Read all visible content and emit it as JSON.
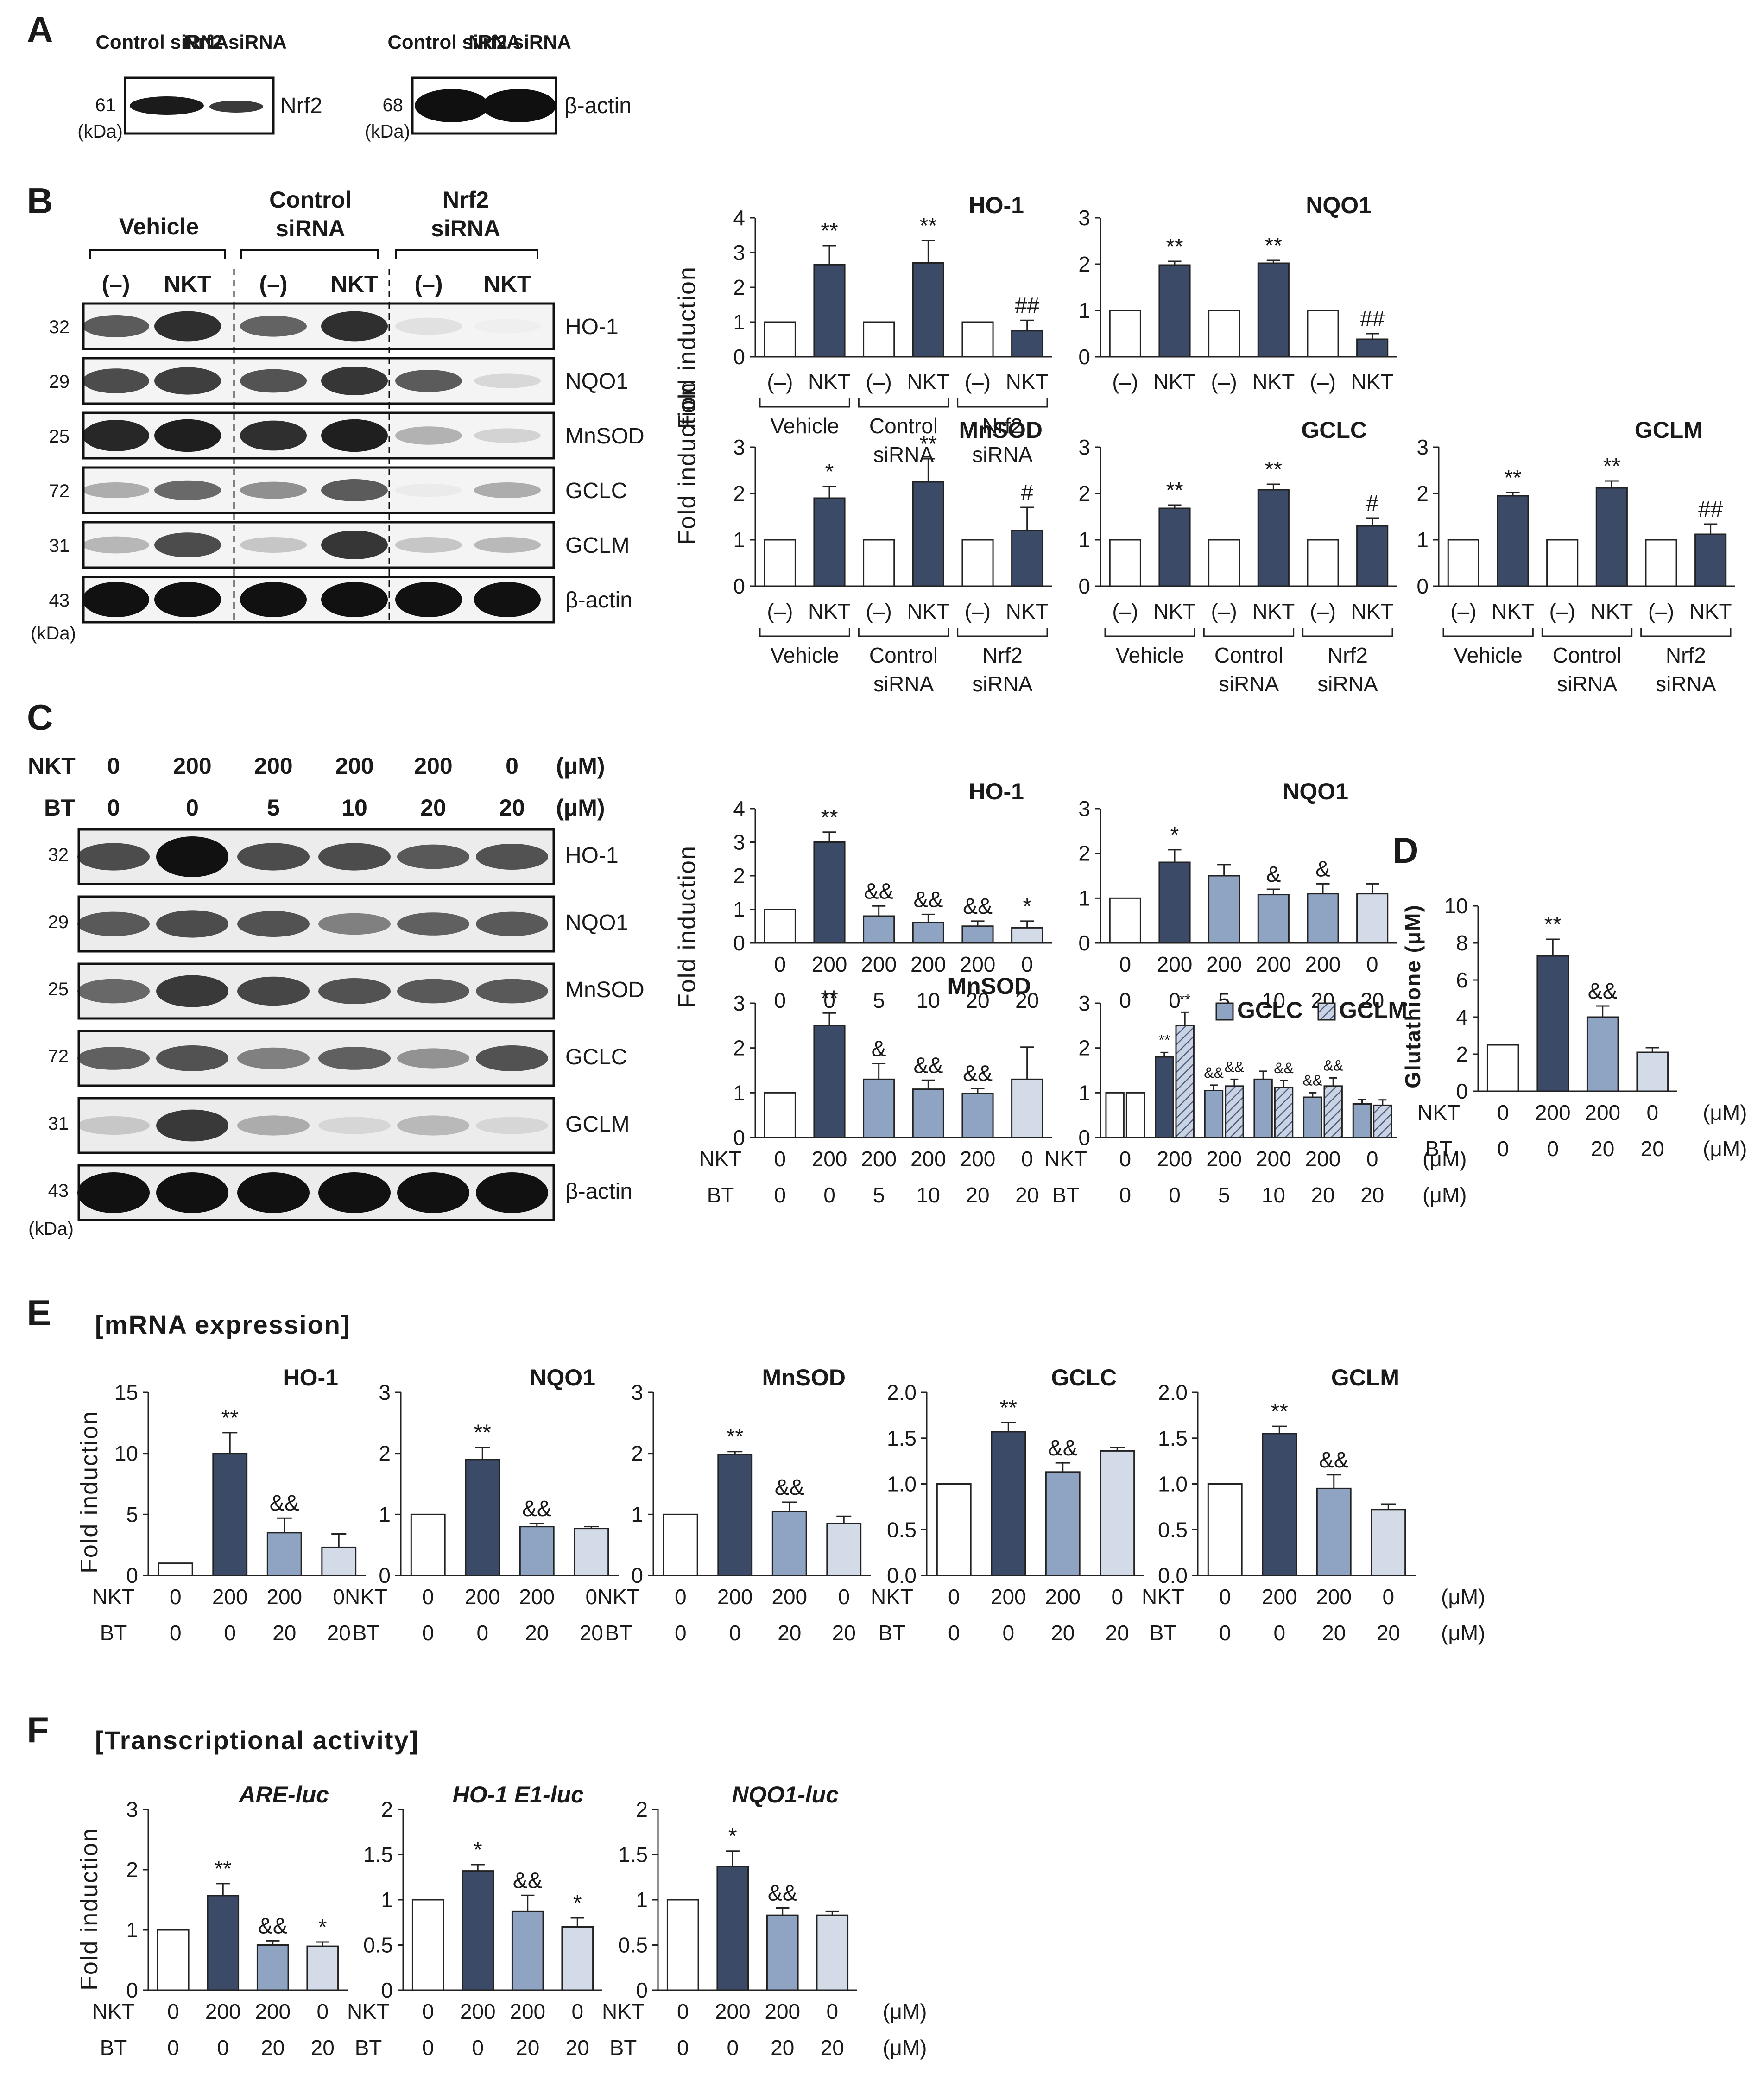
{
  "colors": {
    "white_bar": "#ffffff",
    "dark_bar": "#3b4a66",
    "mid_bar": "#8fa3c2",
    "light_bar": "#d3dbe8",
    "hatch_bar": "#bcc8dc",
    "axis": "#222222"
  },
  "panelA": {
    "letter": "A",
    "blots": [
      {
        "lanes": [
          "Control siRNA",
          "Nrf2 siRNA"
        ],
        "protein": "Nrf2",
        "mw": "61",
        "unit": "(kDa)"
      },
      {
        "lanes": [
          "Control siRNA",
          "Nrf2 siRNA"
        ],
        "protein": "β-actin",
        "mw": "68",
        "unit": "(kDa)"
      }
    ]
  },
  "panelB": {
    "letter": "B",
    "groups": [
      "Vehicle",
      "Control siRNA",
      "Nrf2 siRNA"
    ],
    "lanes": [
      "(–)",
      "NKT",
      "(–)",
      "NKT",
      "(–)",
      "NKT"
    ],
    "rows": [
      {
        "mw": "32",
        "protein": "HO-1"
      },
      {
        "mw": "29",
        "protein": "NQO1"
      },
      {
        "mw": "25",
        "protein": "MnSOD"
      },
      {
        "mw": "72",
        "protein": "GCLC"
      },
      {
        "mw": "31",
        "protein": "GCLM"
      },
      {
        "mw": "43",
        "protein": "β-actin"
      }
    ],
    "unit": "(kDa)"
  },
  "panelC": {
    "letter": "C",
    "nkt_label": "NKT",
    "bt_label": "BT",
    "nkt": [
      "0",
      "200",
      "200",
      "200",
      "200",
      "0"
    ],
    "bt": [
      "0",
      "0",
      "5",
      "10",
      "20",
      "20"
    ],
    "unit": "(μM)",
    "rows": [
      {
        "mw": "32",
        "protein": "HO-1"
      },
      {
        "mw": "29",
        "protein": "NQO1"
      },
      {
        "mw": "25",
        "protein": "MnSOD"
      },
      {
        "mw": "72",
        "protein": "GCLC"
      },
      {
        "mw": "31",
        "protein": "GCLM"
      },
      {
        "mw": "43",
        "protein": "β-actin"
      }
    ],
    "kda": "(kDa)"
  },
  "panelD": {
    "letter": "D"
  },
  "panelE": {
    "letter": "E",
    "section": "[mRNA expression]"
  },
  "panelF": {
    "letter": "F",
    "section": "[Transcriptional activity]"
  },
  "chart_data": [
    {
      "id": "B-HO1",
      "panel": "B",
      "type": "bar",
      "title": "HO-1",
      "ylabel": "Fold induction",
      "ylim": [
        0,
        4
      ],
      "yticks": [
        "0",
        "1",
        "2",
        "3",
        "4"
      ],
      "categories": [
        "(–)",
        "NKT",
        "(–)",
        "NKT",
        "(–)",
        "NKT"
      ],
      "values": [
        1,
        2.65,
        1,
        2.7,
        1,
        0.75
      ],
      "errors": [
        0,
        0.55,
        0,
        0.65,
        0,
        0.3
      ],
      "annotations": [
        "",
        "**",
        "",
        "**",
        "",
        "##"
      ],
      "groups": [
        "Vehicle",
        "Control siRNA",
        "Nrf2 siRNA"
      ]
    },
    {
      "id": "B-NQO1",
      "panel": "B",
      "type": "bar",
      "title": "NQO1",
      "ylim": [
        0,
        3
      ],
      "yticks": [
        "0",
        "1",
        "2",
        "3"
      ],
      "categories": [
        "(–)",
        "NKT",
        "(–)",
        "NKT",
        "(–)",
        "NKT"
      ],
      "values": [
        1,
        1.98,
        1,
        2.02,
        1,
        0.38
      ],
      "errors": [
        0,
        0.08,
        0,
        0.06,
        0,
        0.12
      ],
      "annotations": [
        "",
        "**",
        "",
        "**",
        "",
        "##"
      ]
    },
    {
      "id": "B-MnSOD",
      "panel": "B",
      "type": "bar",
      "title": "MnSOD",
      "ylabel": "Fold induction",
      "ylim": [
        0,
        3
      ],
      "yticks": [
        "0",
        "1",
        "2",
        "3"
      ],
      "categories": [
        "(–)",
        "NKT",
        "(–)",
        "NKT",
        "(–)",
        "NKT"
      ],
      "values": [
        1,
        1.9,
        1,
        2.25,
        1,
        1.2
      ],
      "errors": [
        0,
        0.25,
        0,
        0.5,
        0,
        0.5
      ],
      "annotations": [
        "",
        "*",
        "",
        "**",
        "",
        "#"
      ],
      "groups": [
        "Vehicle",
        "Control siRNA",
        "Nrf2 siRNA"
      ]
    },
    {
      "id": "B-GCLC",
      "panel": "B",
      "type": "bar",
      "title": "GCLC",
      "ylim": [
        0,
        3
      ],
      "yticks": [
        "0",
        "1",
        "2",
        "3"
      ],
      "categories": [
        "(–)",
        "NKT",
        "(–)",
        "NKT",
        "(–)",
        "NKT"
      ],
      "values": [
        1,
        1.68,
        1,
        2.08,
        1,
        1.3
      ],
      "errors": [
        0,
        0.07,
        0,
        0.12,
        0,
        0.17
      ],
      "annotations": [
        "",
        "**",
        "",
        "**",
        "",
        "#"
      ],
      "groups": [
        "Vehicle",
        "Control siRNA",
        "Nrf2 siRNA"
      ]
    },
    {
      "id": "B-GCLM",
      "panel": "B",
      "type": "bar",
      "title": "GCLM",
      "ylim": [
        0,
        3
      ],
      "yticks": [
        "0",
        "1",
        "2",
        "3"
      ],
      "categories": [
        "(–)",
        "NKT",
        "(–)",
        "NKT",
        "(–)",
        "NKT"
      ],
      "values": [
        1,
        1.95,
        1,
        2.12,
        1,
        1.12
      ],
      "errors": [
        0,
        0.07,
        0,
        0.15,
        0,
        0.22
      ],
      "annotations": [
        "",
        "**",
        "",
        "**",
        "",
        "##"
      ],
      "groups": [
        "Vehicle",
        "Control siRNA",
        "Nrf2 siRNA"
      ]
    },
    {
      "id": "C-HO1",
      "panel": "C",
      "type": "bar",
      "title": "HO-1",
      "ylabel": "Fold induction",
      "ylim": [
        0,
        4
      ],
      "yticks": [
        "0",
        "1",
        "2",
        "3",
        "4"
      ],
      "nkt": [
        "0",
        "200",
        "200",
        "200",
        "200",
        "0"
      ],
      "bt": [
        "0",
        "0",
        "5",
        "10",
        "20",
        "20"
      ],
      "values": [
        1,
        3.0,
        0.8,
        0.6,
        0.5,
        0.45
      ],
      "errors": [
        0,
        0.3,
        0.3,
        0.25,
        0.15,
        0.2
      ],
      "annotations": [
        "",
        "**",
        "&&",
        "&&",
        "&&",
        "*"
      ]
    },
    {
      "id": "C-NQO1",
      "panel": "C",
      "type": "bar",
      "title": "NQO1",
      "ylim": [
        0,
        3
      ],
      "yticks": [
        "0",
        "1",
        "2",
        "3"
      ],
      "nkt": [
        "0",
        "200",
        "200",
        "200",
        "200",
        "0"
      ],
      "bt": [
        "0",
        "0",
        "5",
        "10",
        "20",
        "20"
      ],
      "values": [
        1,
        1.8,
        1.5,
        1.08,
        1.1,
        1.1
      ],
      "errors": [
        0,
        0.28,
        0.25,
        0.12,
        0.22,
        0.22
      ],
      "annotations": [
        "",
        "*",
        "",
        "&",
        "&",
        ""
      ]
    },
    {
      "id": "C-MnSOD",
      "panel": "C",
      "type": "bar",
      "title": "MnSOD",
      "ylabel": "Fold induction",
      "ylim": [
        0,
        3
      ],
      "yticks": [
        "0",
        "1",
        "2",
        "3"
      ],
      "nkt": [
        "0",
        "200",
        "200",
        "200",
        "200",
        "0"
      ],
      "bt": [
        "0",
        "0",
        "5",
        "10",
        "20",
        "20"
      ],
      "nkt_label": "NKT",
      "bt_label": "BT",
      "values": [
        1,
        2.5,
        1.3,
        1.08,
        0.98,
        1.3
      ],
      "errors": [
        0,
        0.28,
        0.35,
        0.2,
        0.12,
        0.72
      ],
      "annotations": [
        "",
        "**",
        "&",
        "&&",
        "&&",
        ""
      ]
    },
    {
      "id": "C-GCLC-GCLM",
      "panel": "C",
      "type": "bar",
      "ylim": [
        0,
        3
      ],
      "yticks": [
        "0",
        "1",
        "2",
        "3"
      ],
      "nkt": [
        "0",
        "200",
        "200",
        "200",
        "200",
        "0"
      ],
      "bt": [
        "0",
        "0",
        "5",
        "10",
        "20",
        "20"
      ],
      "nkt_label": "NKT",
      "bt_label": "BT",
      "unit": "(μM)",
      "series": [
        {
          "name": "GCLC",
          "values": [
            1,
            1.8,
            1.05,
            1.3,
            0.9,
            0.75
          ],
          "errors": [
            0,
            0.1,
            0.12,
            0.18,
            0.1,
            0.1
          ],
          "annotations": [
            "",
            "**",
            "&&",
            "",
            "&&",
            ""
          ]
        },
        {
          "name": "GCLM",
          "values": [
            1,
            2.5,
            1.15,
            1.12,
            1.15,
            0.72
          ],
          "errors": [
            0,
            0.3,
            0.15,
            0.15,
            0.18,
            0.12
          ],
          "annotations": [
            "",
            "**",
            "&&",
            "&&",
            "&&",
            ""
          ]
        }
      ]
    },
    {
      "id": "D-GSH",
      "panel": "D",
      "type": "bar",
      "ylabel": "Glutathione (μM)",
      "ylim": [
        0,
        10
      ],
      "yticks": [
        "0",
        "2",
        "4",
        "6",
        "8",
        "10"
      ],
      "nkt": [
        "0",
        "200",
        "200",
        "0"
      ],
      "bt": [
        "0",
        "0",
        "20",
        "20"
      ],
      "nkt_label": "NKT",
      "bt_label": "BT",
      "unit": "(μM)",
      "values": [
        2.5,
        7.3,
        4.0,
        2.1
      ],
      "errors": [
        0,
        0.9,
        0.6,
        0.25
      ],
      "annotations": [
        "",
        "**",
        "&&",
        ""
      ]
    },
    {
      "id": "E-HO1",
      "panel": "E",
      "type": "bar",
      "title": "HO-1",
      "ylabel": "Fold induction",
      "ylim": [
        0,
        15
      ],
      "yticks": [
        "0",
        "5",
        "10",
        "15"
      ],
      "nkt": [
        "0",
        "200",
        "200",
        "0"
      ],
      "bt": [
        "0",
        "0",
        "20",
        "20"
      ],
      "nkt_label": "NKT",
      "bt_label": "BT",
      "values": [
        1,
        10,
        3.5,
        2.3
      ],
      "errors": [
        0,
        1.7,
        1.2,
        1.1
      ],
      "annotations": [
        "",
        "**",
        "&&",
        ""
      ]
    },
    {
      "id": "E-NQO1",
      "panel": "E",
      "type": "bar",
      "title": "NQO1",
      "ylim": [
        0,
        3
      ],
      "yticks": [
        "0",
        "1",
        "2",
        "3"
      ],
      "nkt": [
        "0",
        "200",
        "200",
        "0"
      ],
      "bt": [
        "0",
        "0",
        "20",
        "20"
      ],
      "nkt_label": "NKT",
      "bt_label": "BT",
      "values": [
        1,
        1.9,
        0.8,
        0.77
      ],
      "errors": [
        0,
        0.2,
        0.05,
        0.03
      ],
      "annotations": [
        "",
        "**",
        "&&",
        ""
      ]
    },
    {
      "id": "E-MnSOD",
      "panel": "E",
      "type": "bar",
      "title": "MnSOD",
      "ylim": [
        0,
        3
      ],
      "yticks": [
        "0",
        "1",
        "2",
        "3"
      ],
      "nkt": [
        "0",
        "200",
        "200",
        "0"
      ],
      "bt": [
        "0",
        "0",
        "20",
        "20"
      ],
      "nkt_label": "NKT",
      "bt_label": "BT",
      "values": [
        1,
        1.98,
        1.05,
        0.85
      ],
      "errors": [
        0,
        0.05,
        0.15,
        0.12
      ],
      "annotations": [
        "",
        "**",
        "&&",
        ""
      ]
    },
    {
      "id": "E-GCLC",
      "panel": "E",
      "type": "bar",
      "title": "GCLC",
      "ylim": [
        0,
        2
      ],
      "yticks": [
        "0.0",
        "0.5",
        "1.0",
        "1.5",
        "2.0"
      ],
      "nkt": [
        "0",
        "200",
        "200",
        "0"
      ],
      "bt": [
        "0",
        "0",
        "20",
        "20"
      ],
      "nkt_label": "NKT",
      "bt_label": "BT",
      "values": [
        1,
        1.57,
        1.13,
        1.36
      ],
      "errors": [
        0,
        0.1,
        0.1,
        0.04
      ],
      "annotations": [
        "",
        "**",
        "&&",
        ""
      ]
    },
    {
      "id": "E-GCLM",
      "panel": "E",
      "type": "bar",
      "title": "GCLM",
      "ylim": [
        0,
        2
      ],
      "yticks": [
        "0.0",
        "0.5",
        "1.0",
        "1.5",
        "2.0"
      ],
      "nkt": [
        "0",
        "200",
        "200",
        "0"
      ],
      "bt": [
        "0",
        "0",
        "20",
        "20"
      ],
      "nkt_label": "NKT",
      "bt_label": "BT",
      "unit": "(μM)",
      "values": [
        1,
        1.55,
        0.95,
        0.72
      ],
      "errors": [
        0,
        0.08,
        0.15,
        0.06
      ],
      "annotations": [
        "",
        "**",
        "&&",
        ""
      ]
    },
    {
      "id": "F-ARE",
      "panel": "F",
      "type": "bar",
      "title": "ARE-luc",
      "ylabel": "Fold induction",
      "ylim": [
        0,
        3
      ],
      "yticks": [
        "0",
        "1",
        "2",
        "3"
      ],
      "nkt": [
        "0",
        "200",
        "200",
        "0"
      ],
      "bt": [
        "0",
        "0",
        "20",
        "20"
      ],
      "nkt_label": "NKT",
      "bt_label": "BT",
      "values": [
        1,
        1.57,
        0.75,
        0.73
      ],
      "errors": [
        0,
        0.2,
        0.07,
        0.07
      ],
      "annotations": [
        "",
        "**",
        "&&",
        "*"
      ]
    },
    {
      "id": "F-HO1E1",
      "panel": "F",
      "type": "bar",
      "title": "HO-1 E1-luc",
      "ylim": [
        0,
        2
      ],
      "yticks": [
        "0",
        "0.5",
        "1",
        "1.5",
        "2"
      ],
      "nkt": [
        "0",
        "200",
        "200",
        "0"
      ],
      "bt": [
        "0",
        "0",
        "20",
        "20"
      ],
      "nkt_label": "NKT",
      "bt_label": "BT",
      "values": [
        1,
        1.32,
        0.87,
        0.7
      ],
      "errors": [
        0,
        0.07,
        0.18,
        0.1
      ],
      "annotations": [
        "",
        "*",
        "&&",
        "*"
      ]
    },
    {
      "id": "F-NQO1",
      "panel": "F",
      "type": "bar",
      "title": "NQO1-luc",
      "ylim": [
        0,
        2
      ],
      "yticks": [
        "0",
        "0.5",
        "1",
        "1.5",
        "2"
      ],
      "nkt": [
        "0",
        "200",
        "200",
        "0"
      ],
      "bt": [
        "0",
        "0",
        "20",
        "20"
      ],
      "nkt_label": "NKT",
      "bt_label": "BT",
      "unit": "(μM)",
      "values": [
        1,
        1.37,
        0.83,
        0.83
      ],
      "errors": [
        0,
        0.17,
        0.08,
        0.04
      ],
      "annotations": [
        "",
        "*",
        "&&",
        ""
      ]
    }
  ]
}
